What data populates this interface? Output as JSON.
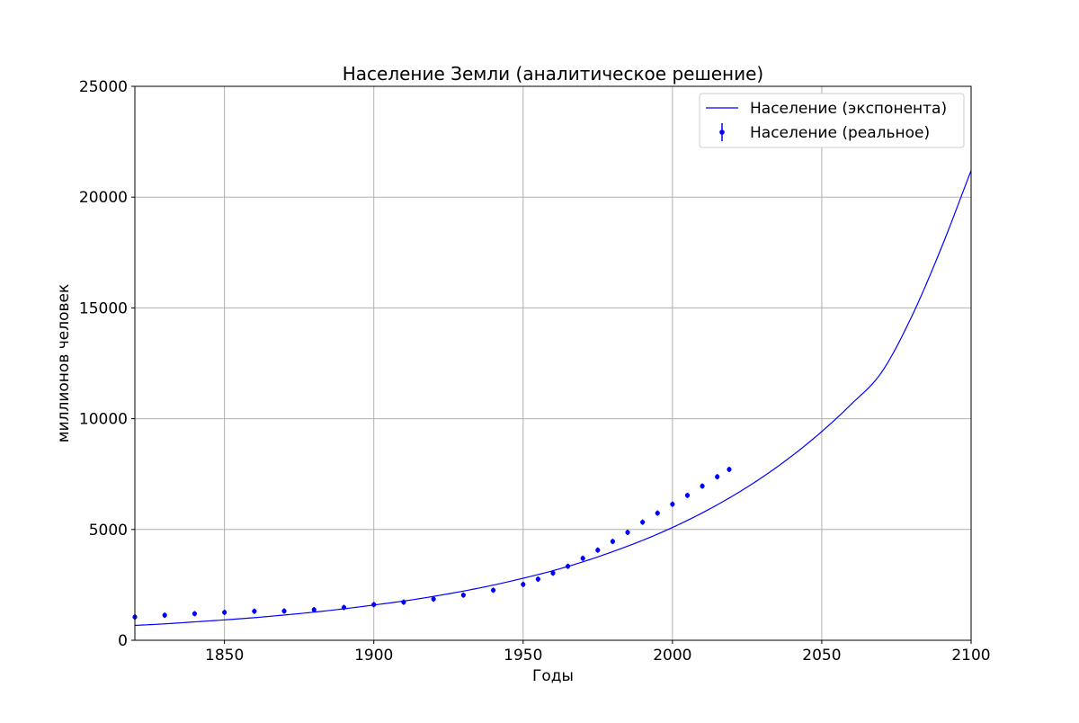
{
  "chart_data": {
    "type": "line",
    "title": "Население Земли (аналитическое решение)",
    "xlabel": "Годы",
    "ylabel": "миллионов человек",
    "xlim": [
      1820,
      2100
    ],
    "ylim": [
      0,
      25000
    ],
    "xticks": [
      1850,
      1900,
      1950,
      2000,
      2050,
      2100
    ],
    "yticks": [
      0,
      5000,
      10000,
      15000,
      20000,
      25000
    ],
    "grid": true,
    "legend_position": "top-right",
    "colors": {
      "series": "#0000ff",
      "grid": "#b0b0b0",
      "axes": "#000000"
    },
    "series": [
      {
        "name": "Население (экспонента)",
        "kind": "line",
        "x": [
          1820,
          1830,
          1840,
          1850,
          1860,
          1870,
          1880,
          1890,
          1900,
          1910,
          1920,
          1930,
          1940,
          1950,
          1960,
          1970,
          1980,
          1990,
          2000,
          2010,
          2020,
          2030,
          2040,
          2050,
          2060,
          2070,
          2080,
          2090,
          2100
        ],
        "values": [
          670,
          740,
          830,
          920,
          1020,
          1140,
          1270,
          1420,
          1590,
          1770,
          1980,
          2220,
          2490,
          2800,
          3140,
          3540,
          4000,
          4510,
          5090,
          5750,
          6500,
          7350,
          8320,
          9420,
          10670,
          12090,
          14580,
          17700,
          21200
        ]
      },
      {
        "name": "Население (реальное)",
        "kind": "errorbar",
        "x": [
          1820,
          1830,
          1840,
          1850,
          1860,
          1870,
          1880,
          1890,
          1900,
          1910,
          1920,
          1930,
          1940,
          1950,
          1955,
          1960,
          1965,
          1970,
          1975,
          1980,
          1985,
          1990,
          1995,
          2000,
          2005,
          2010,
          2015,
          2019
        ],
        "values": [
          1050,
          1130,
          1200,
          1260,
          1310,
          1320,
          1380,
          1480,
          1610,
          1720,
          1860,
          2040,
          2260,
          2520,
          2760,
          3030,
          3340,
          3700,
          4070,
          4460,
          4870,
          5330,
          5740,
          6140,
          6540,
          6960,
          7380,
          7710
        ]
      }
    ]
  }
}
